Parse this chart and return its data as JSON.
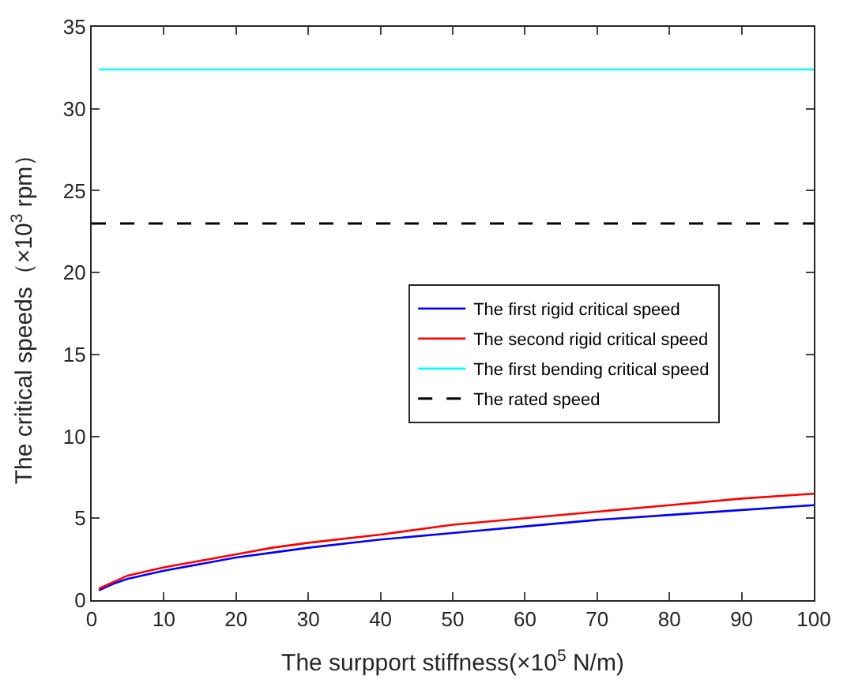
{
  "chart_data": {
    "type": "line",
    "xlabel": "The surpport stiffness(×10$^{5}$ N/m)",
    "ylabel": "The critical speeds（×10$^{3}$ rpm）",
    "x": [
      1,
      3,
      5,
      10,
      15,
      20,
      25,
      30,
      40,
      50,
      60,
      70,
      80,
      90,
      100
    ],
    "series": [
      {
        "name": "The first rigid critical speed",
        "color": "#0000ff",
        "values": [
          0.6,
          1.0,
          1.3,
          1.8,
          2.2,
          2.6,
          2.9,
          3.2,
          3.7,
          4.1,
          4.5,
          4.9,
          5.2,
          5.5,
          5.8
        ]
      },
      {
        "name": "The second rigid critical speed",
        "color": "#ff0000",
        "values": [
          0.7,
          1.1,
          1.5,
          2.0,
          2.4,
          2.8,
          3.2,
          3.5,
          4.0,
          4.6,
          5.0,
          5.4,
          5.8,
          6.2,
          6.5
        ]
      },
      {
        "name": "The first bending critical speed",
        "color": "#00ffff",
        "values": [
          32.4,
          32.4,
          32.4,
          32.4,
          32.4,
          32.4,
          32.4,
          32.4,
          32.4,
          32.4,
          32.4,
          32.4,
          32.4,
          32.4,
          32.4
        ]
      }
    ],
    "ref_lines": [
      {
        "axis": "y",
        "value": 23,
        "label": "The rated speed",
        "color": "#000000",
        "line_style": "dashed"
      }
    ],
    "xlim": [
      0,
      100
    ],
    "xticks": [
      0,
      10,
      20,
      30,
      40,
      50,
      60,
      70,
      80,
      90,
      100
    ],
    "ylim": [
      0,
      35
    ],
    "yticks": [
      0,
      5,
      10,
      15,
      20,
      25,
      30,
      35
    ],
    "legend": "right",
    "marker": "none",
    "line_style": "solid"
  }
}
